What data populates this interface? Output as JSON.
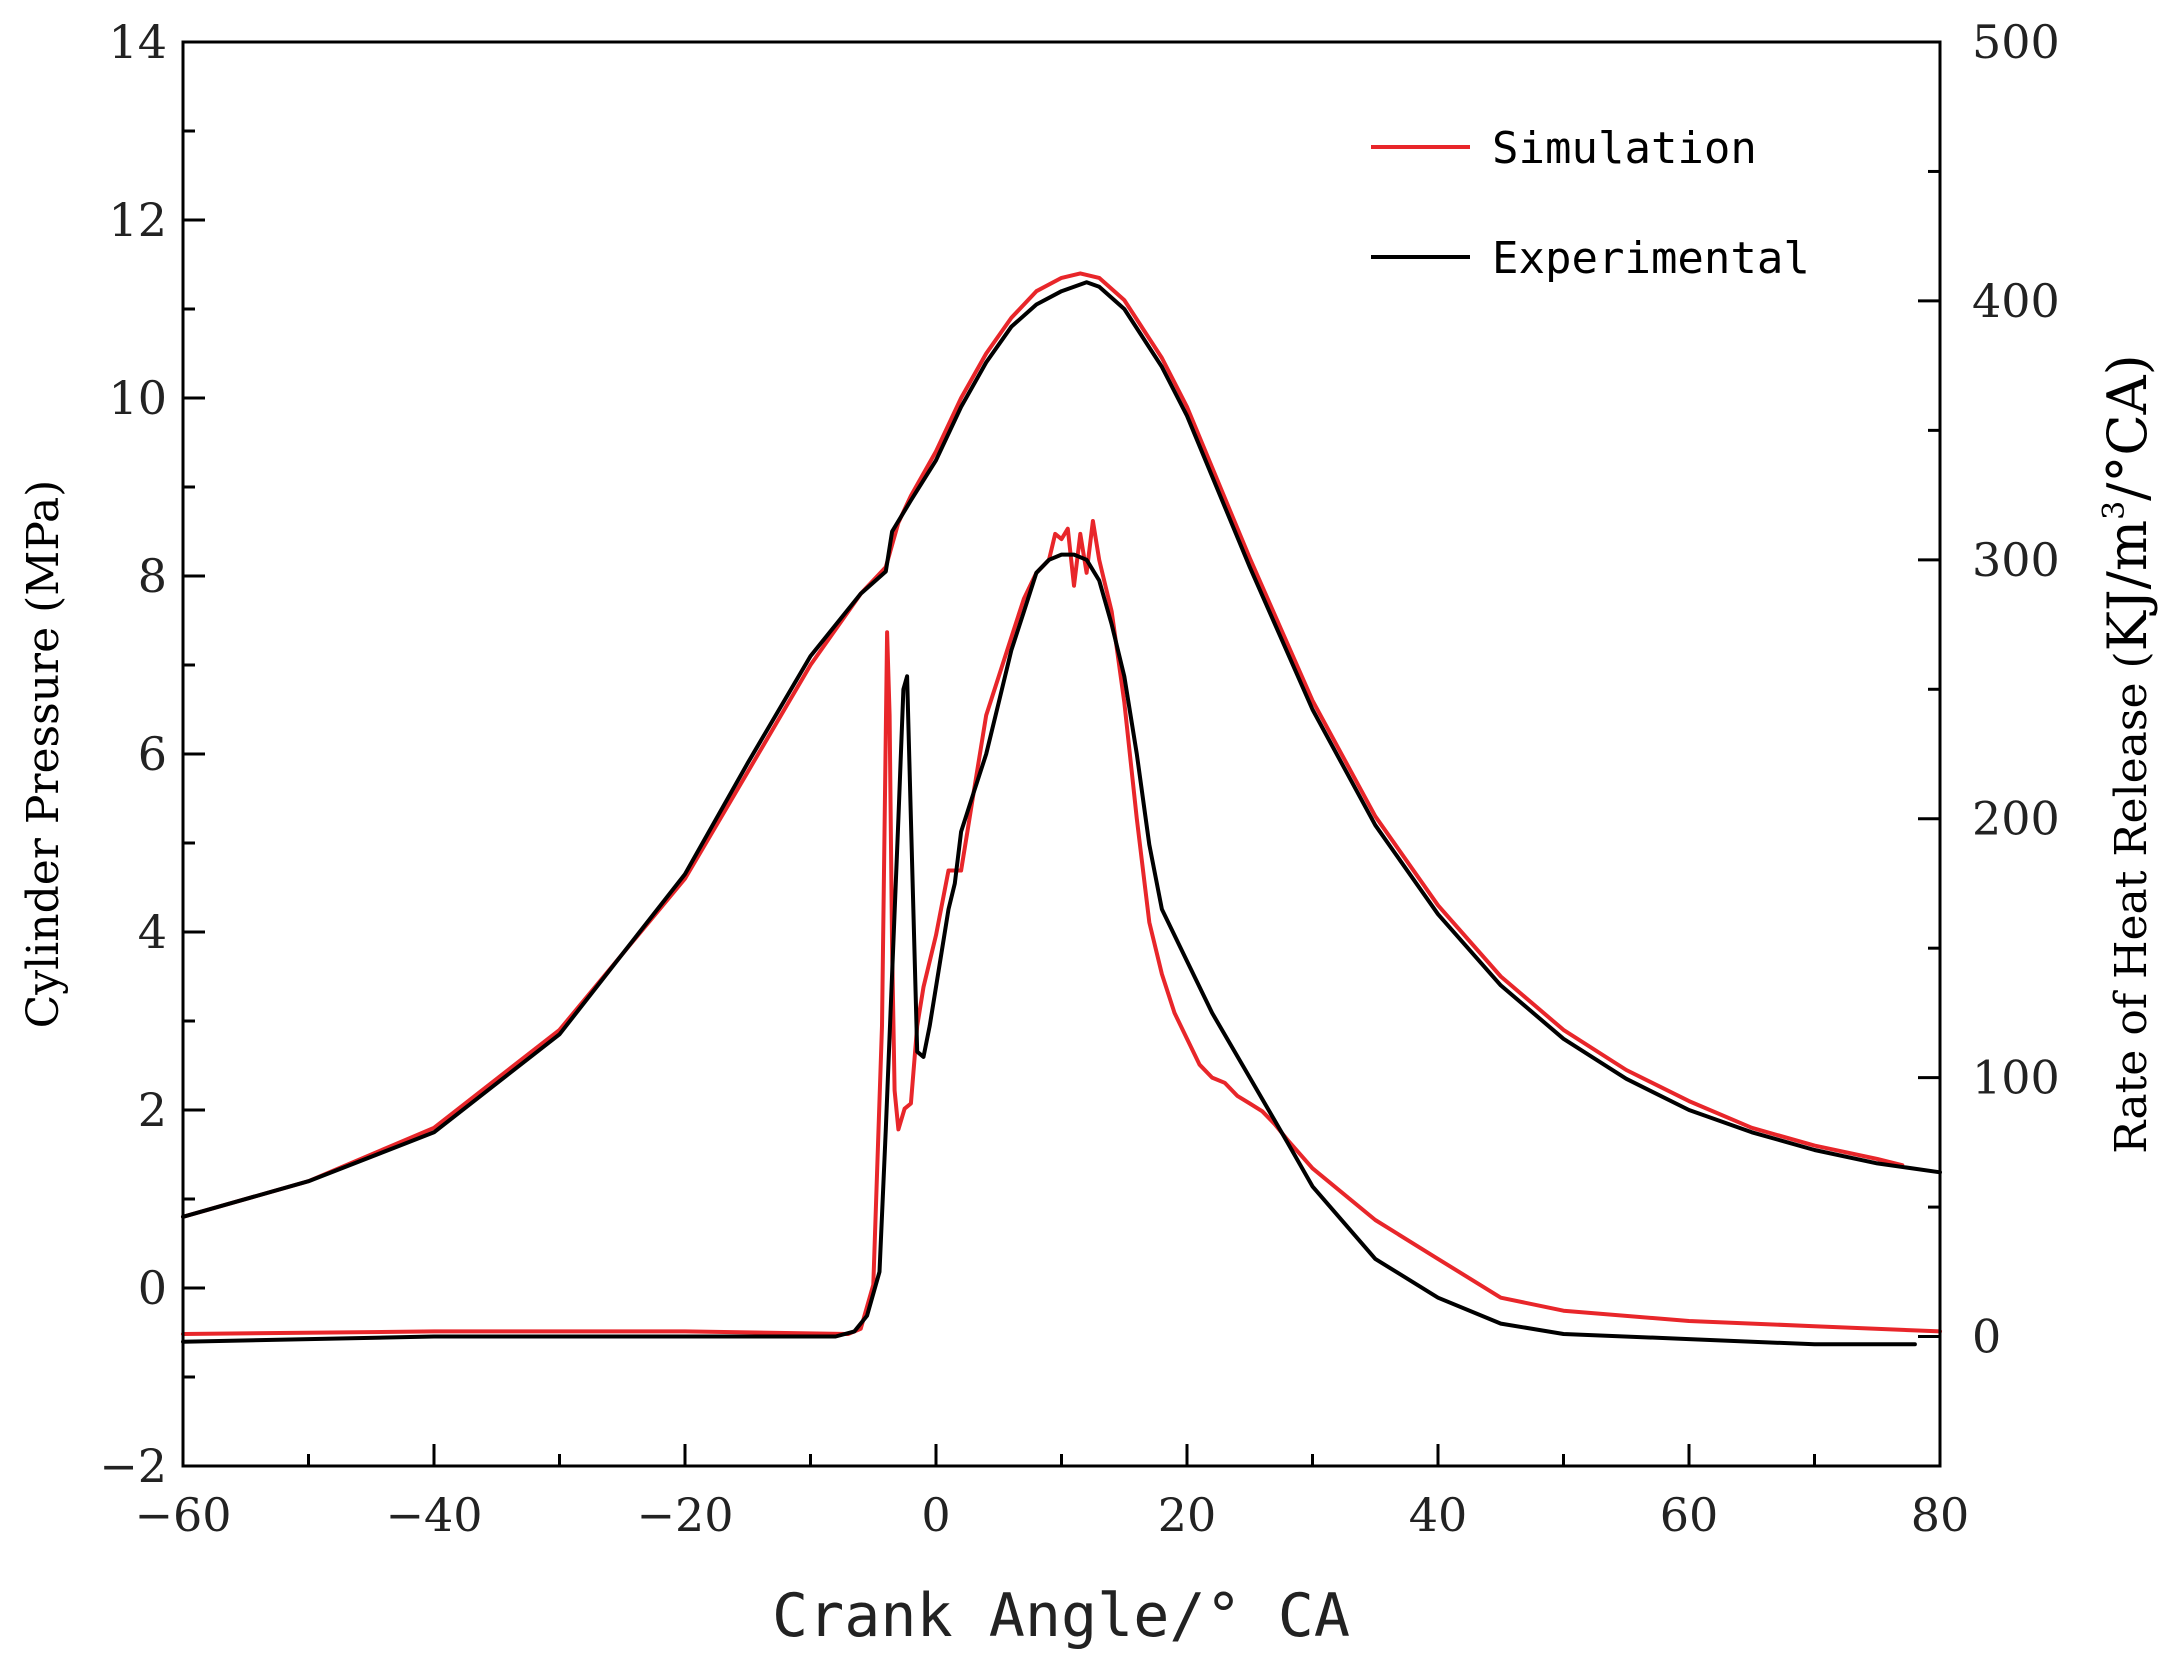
{
  "chart_data": {
    "type": "line",
    "xlabel": "Crank Angle/° CA",
    "ylabel": "Cylinder Pressure (MPa)",
    "y2label_parts": [
      "Rate of Heat Release (",
      "KJ/m",
      "3",
      "/°CA)"
    ],
    "xlim": [
      -60,
      80
    ],
    "ylim": [
      -2,
      14
    ],
    "y2lim": [
      -50,
      500
    ],
    "xticks": [
      -60,
      -40,
      -20,
      0,
      20,
      40,
      60,
      80
    ],
    "xtick_labels": [
      "−60",
      "−40",
      "−20",
      "0",
      "20",
      "40",
      "60",
      "80"
    ],
    "yticks": [
      -2,
      0,
      2,
      4,
      6,
      8,
      10,
      12,
      14
    ],
    "ytick_labels": [
      "−2",
      "0",
      "2",
      "4",
      "6",
      "8",
      "10",
      "12",
      "14"
    ],
    "y2ticks": [
      0,
      100,
      200,
      300,
      400,
      500
    ],
    "y2tick_labels": [
      "0",
      "100",
      "200",
      "300",
      "400",
      "500"
    ],
    "legend": {
      "position": "top-right",
      "entries": [
        {
          "name": "Simulation",
          "color": "#e8262a"
        },
        {
          "name": "Experimental",
          "color": "#000000"
        }
      ]
    },
    "series": [
      {
        "name": "Simulation",
        "quantity": "Cylinder Pressure",
        "axis": "left",
        "color": "#e8262a",
        "x": [
          -60,
          -50,
          -40,
          -30,
          -20,
          -15,
          -10,
          -6,
          -4,
          -3,
          -2,
          0,
          2,
          4,
          6,
          8,
          10,
          11.5,
          13,
          15,
          18,
          20,
          25,
          30,
          35,
          40,
          45,
          50,
          55,
          60,
          65,
          70,
          75,
          77
        ],
        "y": [
          0.8,
          1.2,
          1.8,
          2.9,
          4.6,
          5.8,
          7.0,
          7.8,
          8.1,
          8.6,
          8.9,
          9.4,
          10.0,
          10.5,
          10.9,
          11.2,
          11.35,
          11.4,
          11.35,
          11.1,
          10.45,
          9.9,
          8.2,
          6.6,
          5.3,
          4.3,
          3.5,
          2.9,
          2.45,
          2.1,
          1.8,
          1.6,
          1.45,
          1.38
        ]
      },
      {
        "name": "Experimental",
        "quantity": "Cylinder Pressure",
        "axis": "left",
        "color": "#000000",
        "x": [
          -60,
          -50,
          -40,
          -30,
          -20,
          -15,
          -10,
          -6,
          -4,
          -3.5,
          -2,
          0,
          2,
          4,
          6,
          8,
          10,
          12,
          13,
          15,
          18,
          20,
          25,
          30,
          35,
          40,
          45,
          50,
          55,
          60,
          65,
          70,
          75,
          80
        ],
        "y": [
          0.8,
          1.2,
          1.75,
          2.85,
          4.65,
          5.9,
          7.1,
          7.8,
          8.05,
          8.5,
          8.85,
          9.3,
          9.9,
          10.4,
          10.8,
          11.05,
          11.2,
          11.3,
          11.25,
          11.0,
          10.35,
          9.8,
          8.1,
          6.5,
          5.2,
          4.2,
          3.4,
          2.8,
          2.35,
          2.0,
          1.75,
          1.55,
          1.4,
          1.3
        ]
      },
      {
        "name": "Simulation",
        "quantity": "Rate of Heat Release",
        "axis": "right",
        "color": "#e8262a",
        "x": [
          -60,
          -40,
          -20,
          -7,
          -6,
          -5,
          -4.3,
          -3.9,
          -3.7,
          -3.5,
          -3.3,
          -3.0,
          -2.5,
          -2.0,
          -1.5,
          -1.0,
          0,
          1,
          2,
          2.5,
          3,
          4,
          5,
          6,
          7,
          8,
          9,
          9.5,
          10,
          10.5,
          11,
          11.5,
          12,
          12.5,
          13,
          13.5,
          14,
          15,
          16,
          17,
          18,
          19,
          20,
          21,
          22,
          23,
          24,
          25,
          26,
          27,
          28,
          30,
          35,
          40,
          45,
          50,
          60,
          70,
          80
        ],
        "y": [
          1,
          2,
          2,
          1,
          3,
          20,
          120,
          272,
          240,
          150,
          95,
          80,
          88,
          90,
          120,
          135,
          155,
          180,
          180,
          195,
          210,
          240,
          255,
          270,
          285,
          295,
          300,
          310,
          308,
          312,
          290,
          310,
          295,
          315,
          300,
          290,
          280,
          245,
          200,
          160,
          140,
          125,
          115,
          105,
          100,
          98,
          93,
          90,
          87,
          82,
          76,
          65,
          45,
          30,
          15,
          10,
          6,
          4,
          2
        ]
      },
      {
        "name": "Experimental",
        "quantity": "Rate of Heat Release",
        "axis": "right",
        "color": "#000000",
        "x": [
          -60,
          -40,
          -20,
          -8,
          -6.5,
          -5.5,
          -4.5,
          -4,
          -3.5,
          -3,
          -2.6,
          -2.3,
          -2.0,
          -1.5,
          -1.0,
          -0.5,
          0,
          1,
          1.5,
          2,
          3,
          4,
          5,
          6,
          7,
          8,
          9,
          10,
          11,
          12,
          13,
          14,
          15,
          16,
          17,
          18,
          20,
          22,
          25,
          28,
          30,
          35,
          40,
          45,
          50,
          60,
          70,
          78
        ],
        "y": [
          -2,
          0,
          0,
          0,
          2,
          8,
          25,
          80,
          140,
          200,
          250,
          255,
          200,
          110,
          108,
          120,
          135,
          165,
          175,
          195,
          210,
          225,
          245,
          265,
          280,
          295,
          300,
          302,
          302,
          300,
          292,
          275,
          255,
          225,
          190,
          165,
          145,
          125,
          100,
          75,
          58,
          30,
          15,
          5,
          1,
          -1,
          -3,
          -3
        ]
      }
    ]
  }
}
